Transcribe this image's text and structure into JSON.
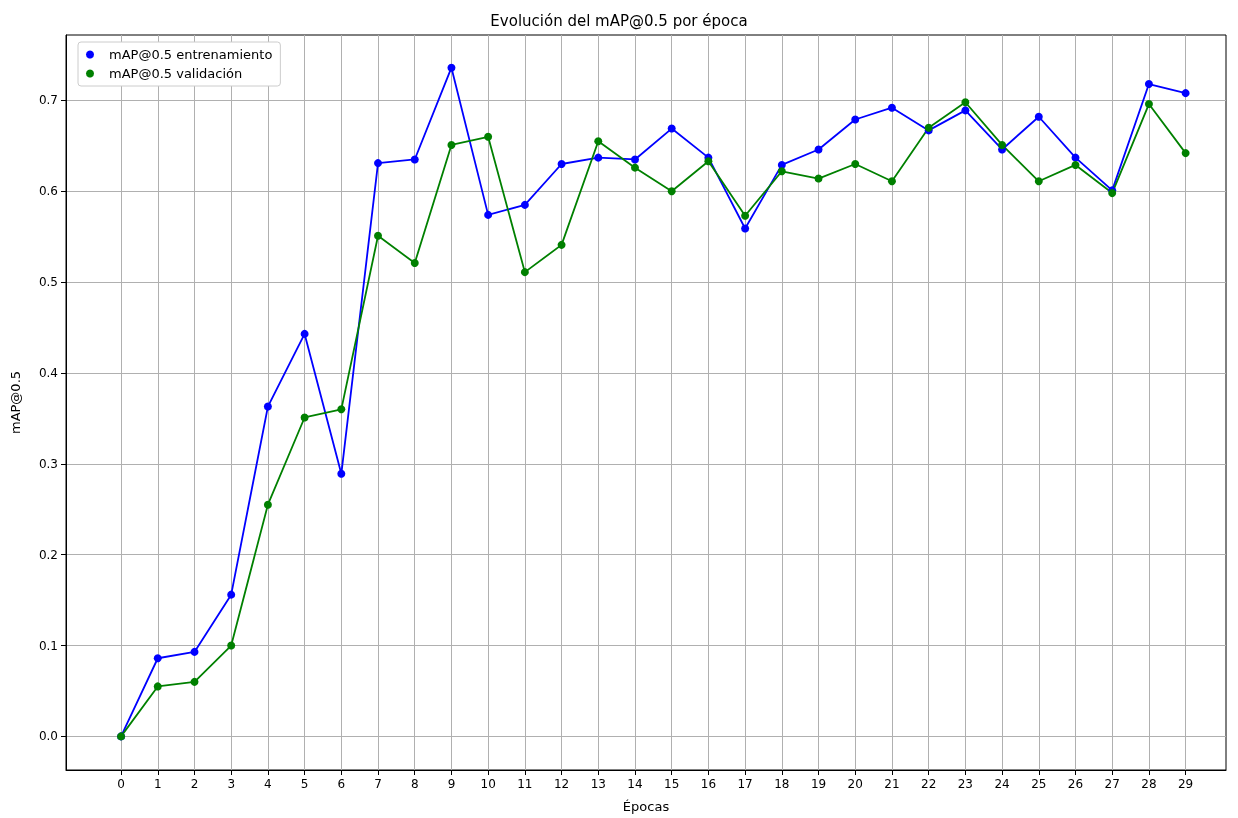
{
  "chart_data": {
    "type": "line",
    "title": "Evolución del mAP@0.5 por época",
    "xlabel": "Épocas",
    "ylabel": "mAP@0.5",
    "x": [
      0,
      1,
      2,
      3,
      4,
      5,
      6,
      7,
      8,
      9,
      10,
      11,
      12,
      13,
      14,
      15,
      16,
      17,
      18,
      19,
      20,
      21,
      22,
      23,
      24,
      25,
      26,
      27,
      28,
      29
    ],
    "series": [
      {
        "name": "mAP@0.5 entrenamiento",
        "color": "#0000ff",
        "values": [
          0,
          0.086,
          0.093,
          0.156,
          0.363,
          0.443,
          0.289,
          0.631,
          0.635,
          0.736,
          0.574,
          0.585,
          0.63,
          0.637,
          0.635,
          0.669,
          0.637,
          0.559,
          0.629,
          0.646,
          0.679,
          0.692,
          0.667,
          0.689,
          0.646,
          0.682,
          0.637,
          0.601,
          0.718,
          0.708
        ]
      },
      {
        "name": "mAP@0.5 validación",
        "color": "#008000",
        "values": [
          0,
          0.055,
          0.06,
          0.1,
          0.255,
          0.351,
          0.36,
          0.551,
          0.521,
          0.651,
          0.66,
          0.511,
          0.541,
          0.655,
          0.626,
          0.6,
          0.633,
          0.573,
          0.622,
          0.614,
          0.63,
          0.611,
          0.67,
          0.698,
          0.651,
          0.611,
          0.629,
          0.598,
          0.696,
          0.642
        ]
      }
    ],
    "xlim": [
      -1.5,
      30.1
    ],
    "xticks": [
      0,
      1,
      2,
      3,
      4,
      5,
      6,
      7,
      8,
      9,
      10,
      11,
      12,
      13,
      14,
      15,
      16,
      17,
      18,
      19,
      20,
      21,
      22,
      23,
      24,
      25,
      26,
      27,
      28,
      29
    ],
    "ylim": [
      -0.037,
      0.772
    ],
    "yticks": [
      {
        "value": 0,
        "label": "0.0"
      },
      0.1,
      0.2,
      0.3,
      0.4,
      0.5,
      0.6,
      0.7
    ],
    "grid": true,
    "legend": "top left",
    "marker": "circle",
    "line_style": "solid"
  }
}
